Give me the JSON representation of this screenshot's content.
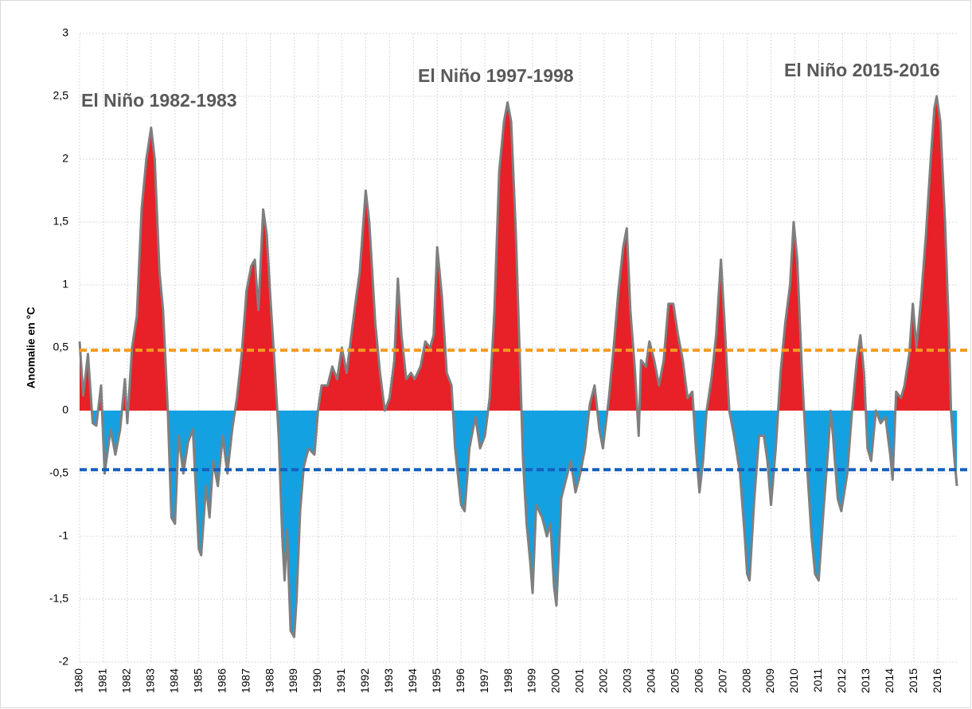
{
  "chart_data": {
    "type": "area",
    "y_label": "Anomalie en °C",
    "annotations": [
      "El Niño 1982-1983",
      "El Niño 1997-1998",
      "El Niño 2015-2016"
    ],
    "x": [
      1980.0,
      1980.15,
      1980.35,
      1980.55,
      1980.7,
      1980.9,
      1981.05,
      1981.3,
      1981.5,
      1981.7,
      1981.9,
      1982.0,
      1982.2,
      1982.4,
      1982.6,
      1982.8,
      1983.0,
      1983.15,
      1983.35,
      1983.5,
      1983.7,
      1983.85,
      1984.0,
      1984.15,
      1984.35,
      1984.55,
      1984.75,
      1985.0,
      1985.1,
      1985.3,
      1985.45,
      1985.6,
      1985.8,
      1986.0,
      1986.2,
      1986.4,
      1986.6,
      1986.8,
      1987.0,
      1987.2,
      1987.35,
      1987.5,
      1987.7,
      1987.85,
      1988.0,
      1988.2,
      1988.35,
      1988.5,
      1988.6,
      1988.7,
      1988.85,
      1989.0,
      1989.1,
      1989.25,
      1989.4,
      1989.6,
      1989.85,
      1990.0,
      1990.15,
      1990.4,
      1990.6,
      1990.8,
      1991.0,
      1991.2,
      1991.4,
      1991.6,
      1991.75,
      1992.0,
      1992.15,
      1992.4,
      1992.6,
      1992.8,
      1993.0,
      1993.2,
      1993.35,
      1993.5,
      1993.7,
      1993.9,
      1994.05,
      1994.3,
      1994.5,
      1994.7,
      1994.85,
      1995.0,
      1995.2,
      1995.4,
      1995.6,
      1995.75,
      1996.0,
      1996.15,
      1996.35,
      1996.6,
      1996.8,
      1997.0,
      1997.2,
      1997.4,
      1997.6,
      1997.8,
      1997.95,
      1998.1,
      1998.3,
      1998.45,
      1998.6,
      1998.75,
      1998.9,
      1999.0,
      1999.15,
      1999.4,
      1999.6,
      1999.75,
      1999.9,
      2000.0,
      2000.2,
      2000.4,
      2000.6,
      2000.8,
      2001.0,
      2001.2,
      2001.4,
      2001.6,
      2001.8,
      2001.95,
      2002.2,
      2002.4,
      2002.6,
      2002.8,
      2002.95,
      2003.1,
      2003.3,
      2003.45,
      2003.55,
      2003.75,
      2003.9,
      2004.1,
      2004.3,
      2004.5,
      2004.7,
      2004.9,
      2005.1,
      2005.3,
      2005.5,
      2005.7,
      2005.85,
      2006.0,
      2006.15,
      2006.3,
      2006.5,
      2006.7,
      2006.9,
      2007.05,
      2007.25,
      2007.45,
      2007.7,
      2007.9,
      2008.0,
      2008.1,
      2008.3,
      2008.5,
      2008.7,
      2008.85,
      2009.0,
      2009.2,
      2009.4,
      2009.6,
      2009.8,
      2009.95,
      2010.1,
      2010.3,
      2010.5,
      2010.7,
      2010.85,
      2011.0,
      2011.2,
      2011.4,
      2011.5,
      2011.6,
      2011.8,
      2011.95,
      2012.2,
      2012.4,
      2012.6,
      2012.75,
      2012.9,
      2013.05,
      2013.2,
      2013.4,
      2013.6,
      2013.8,
      2014.0,
      2014.1,
      2014.25,
      2014.45,
      2014.6,
      2014.8,
      2014.95,
      2015.1,
      2015.3,
      2015.5,
      2015.7,
      2015.85,
      2015.95,
      2016.1,
      2016.3,
      2016.45,
      2016.55,
      2016.7,
      2016.8
    ],
    "values": [
      0.55,
      0.12,
      0.45,
      -0.1,
      -0.12,
      0.2,
      -0.5,
      -0.15,
      -0.35,
      -0.15,
      0.25,
      -0.1,
      0.5,
      0.75,
      1.6,
      2.0,
      2.25,
      2.0,
      1.1,
      0.8,
      0.0,
      -0.85,
      -0.9,
      -0.2,
      -0.5,
      -0.25,
      -0.15,
      -1.1,
      -1.15,
      -0.6,
      -0.85,
      -0.4,
      -0.6,
      -0.2,
      -0.5,
      -0.15,
      0.1,
      0.45,
      0.95,
      1.15,
      1.2,
      0.8,
      1.6,
      1.4,
      0.9,
      0.3,
      -0.2,
      -1.0,
      -1.35,
      -0.95,
      -1.75,
      -1.8,
      -1.5,
      -0.8,
      -0.45,
      -0.3,
      -0.35,
      0.0,
      0.2,
      0.2,
      0.35,
      0.25,
      0.5,
      0.3,
      0.6,
      0.9,
      1.1,
      1.75,
      1.5,
      0.7,
      0.3,
      0.0,
      0.1,
      0.4,
      1.05,
      0.6,
      0.25,
      0.3,
      0.25,
      0.35,
      0.55,
      0.5,
      0.6,
      1.3,
      0.9,
      0.3,
      0.2,
      -0.3,
      -0.75,
      -0.8,
      -0.3,
      -0.05,
      -0.3,
      -0.2,
      0.1,
      0.8,
      1.9,
      2.3,
      2.45,
      2.3,
      1.4,
      0.5,
      -0.4,
      -0.9,
      -1.2,
      -1.45,
      -0.75,
      -0.85,
      -1.0,
      -0.9,
      -1.4,
      -1.55,
      -0.7,
      -0.55,
      -0.4,
      -0.65,
      -0.5,
      -0.3,
      0.05,
      0.2,
      -0.15,
      -0.3,
      0.1,
      0.5,
      0.95,
      1.3,
      1.45,
      0.8,
      0.3,
      -0.2,
      0.4,
      0.35,
      0.55,
      0.4,
      0.2,
      0.4,
      0.85,
      0.85,
      0.6,
      0.4,
      0.1,
      0.15,
      -0.3,
      -0.65,
      -0.4,
      0.0,
      0.25,
      0.6,
      1.2,
      0.7,
      0.0,
      -0.2,
      -0.5,
      -1.0,
      -1.3,
      -1.35,
      -0.7,
      -0.2,
      -0.2,
      -0.4,
      -0.75,
      -0.3,
      0.3,
      0.7,
      1.0,
      1.5,
      1.2,
      0.3,
      -0.4,
      -1.0,
      -1.3,
      -1.35,
      -0.8,
      -0.3,
      0.0,
      -0.2,
      -0.7,
      -0.8,
      -0.5,
      0.0,
      0.4,
      0.6,
      0.3,
      -0.3,
      -0.4,
      0.0,
      -0.1,
      -0.05,
      -0.35,
      -0.55,
      0.15,
      0.1,
      0.2,
      0.45,
      0.85,
      0.5,
      0.9,
      1.4,
      2.0,
      2.4,
      2.5,
      2.3,
      1.5,
      0.7,
      0.0,
      -0.4,
      -0.6
    ],
    "positive_color": "#e82027",
    "negative_color": "#14a1e2",
    "line_color": "#7f7f7f",
    "thresholds": [
      {
        "value": 0.48,
        "color": "#f39c1f"
      },
      {
        "value": -0.47,
        "color": "#1560bd"
      }
    ],
    "xlim": [
      1980,
      2016.83
    ],
    "xticks": [
      1980,
      1981,
      1982,
      1983,
      1984,
      1985,
      1986,
      1987,
      1988,
      1989,
      1990,
      1991,
      1992,
      1993,
      1994,
      1995,
      1996,
      1997,
      1998,
      1999,
      2000,
      2001,
      2002,
      2003,
      2004,
      2005,
      2006,
      2007,
      2008,
      2009,
      2010,
      2011,
      2012,
      2013,
      2014,
      2015,
      2016
    ],
    "ylim": [
      -2,
      3
    ],
    "yticks": [
      -2,
      {
        "value": -1.5,
        "label": "-1,5"
      },
      -1,
      {
        "value": -0.5,
        "label": "-0,5"
      },
      0,
      {
        "value": 0.5,
        "label": "0,5"
      },
      1,
      {
        "value": 1.5,
        "label": "1,5"
      },
      2,
      {
        "value": 2.5,
        "label": "2,5"
      },
      3
    ],
    "grid": true
  }
}
